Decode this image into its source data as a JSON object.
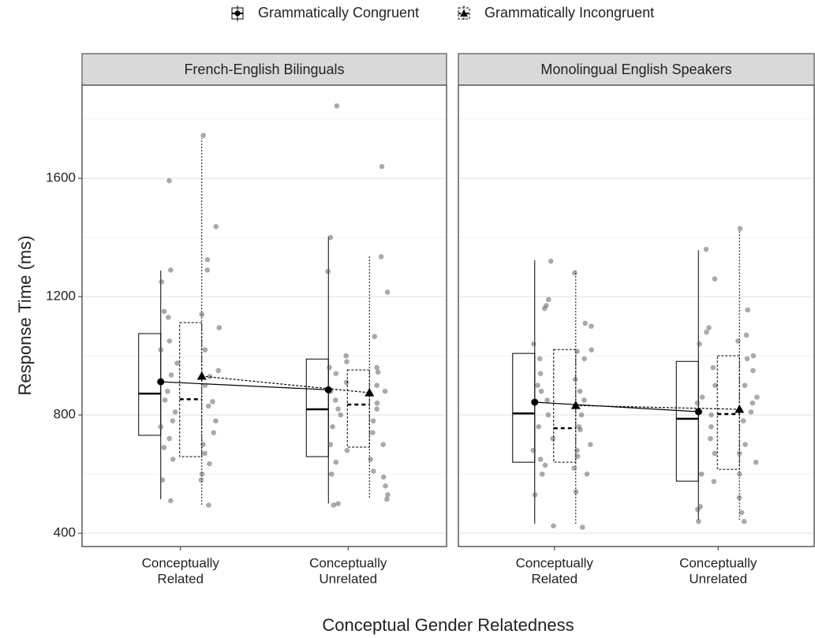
{
  "chart_data": {
    "type": "box",
    "x_label": "Conceptual Gender Relatedness",
    "y_label": "Response Time (ms)",
    "ylim": [
      355,
      1915
    ],
    "yticks": [
      400,
      800,
      1200,
      1600
    ],
    "grid": true,
    "legend": "top",
    "categories": [
      [
        "Conceptually",
        "Related"
      ],
      [
        "Conceptually",
        "Unrelated"
      ]
    ],
    "series": [
      {
        "name": "Grammatically Congruent",
        "color": "#000000",
        "dashed": false,
        "marker": "circle"
      },
      {
        "name": "Grammatically Incongruent",
        "color": "#000000",
        "dashed": true,
        "marker": "triangle"
      }
    ],
    "facets": [
      {
        "title": "French-English Bilinguals",
        "series": [
          {
            "boxes": [
              {
                "whisker_low": 515,
                "q1": 731,
                "median": 872,
                "q3": 1075,
                "whisker_high": 1288,
                "mean": 912,
                "points": [
                  1592,
                  1290,
                  1250,
                  1150,
                  1130,
                  1050,
                  1020,
                  975,
                  935,
                  880,
                  850,
                  810,
                  780,
                  760,
                  720,
                  690,
                  650,
                  580,
                  510
                ]
              },
              {
                "whisker_low": 501,
                "q1": 659,
                "median": 819,
                "q3": 989,
                "whisker_high": 1403,
                "mean": 885,
                "points": [
                  1845,
                  1400,
                  1285,
                  1000,
                  980,
                  960,
                  940,
                  910,
                  880,
                  850,
                  820,
                  800,
                  760,
                  700,
                  680,
                  640,
                  600,
                  500,
                  495
                ]
              }
            ]
          },
          {
            "boxes": [
              {
                "whisker_low": 496,
                "q1": 659,
                "median": 853,
                "q3": 1112,
                "whisker_high": 1736,
                "mean": 931,
                "points": [
                  1745,
                  1437,
                  1325,
                  1290,
                  1140,
                  1095,
                  1020,
                  950,
                  930,
                  900,
                  845,
                  830,
                  780,
                  740,
                  700,
                  670,
                  635,
                  600,
                  580,
                  495
                ]
              },
              {
                "whisker_low": 520,
                "q1": 691,
                "median": 835,
                "q3": 952,
                "whisker_high": 1336,
                "mean": 875,
                "points": [
                  1640,
                  1335,
                  1215,
                  1065,
                  960,
                  945,
                  900,
                  880,
                  840,
                  820,
                  780,
                  740,
                  700,
                  650,
                  610,
                  590,
                  560,
                  530,
                  515
                ]
              }
            ]
          }
        ]
      },
      {
        "title": "Monolingual English Speakers",
        "series": [
          {
            "boxes": [
              {
                "whisker_low": 432,
                "q1": 640,
                "median": 805,
                "q3": 1008,
                "whisker_high": 1323,
                "mean": 843,
                "points": [
                  1320,
                  1190,
                  1170,
                  1160,
                  1040,
                  990,
                  940,
                  900,
                  880,
                  850,
                  800,
                  760,
                  720,
                  680,
                  650,
                  630,
                  600,
                  530,
                  425
                ]
              },
              {
                "whisker_low": 445,
                "q1": 576,
                "median": 787,
                "q3": 981,
                "whisker_high": 1357,
                "mean": 811,
                "points": [
                  1360,
                  1260,
                  1095,
                  1080,
                  1040,
                  960,
                  900,
                  860,
                  840,
                  810,
                  800,
                  760,
                  720,
                  670,
                  600,
                  575,
                  490,
                  480,
                  440
                ]
              }
            ]
          },
          {
            "boxes": [
              {
                "whisker_low": 432,
                "q1": 640,
                "median": 755,
                "q3": 1021,
                "whisker_high": 1288,
                "mean": 832,
                "points": [
                  1280,
                  1110,
                  1100,
                  1020,
                  1015,
                  990,
                  920,
                  880,
                  850,
                  830,
                  800,
                  760,
                  750,
                  700,
                  680,
                  660,
                  620,
                  600,
                  540,
                  420
                ]
              },
              {
                "whisker_low": 445,
                "q1": 616,
                "median": 803,
                "q3": 1000,
                "whisker_high": 1424,
                "mean": 819,
                "points": [
                  1430,
                  1155,
                  1070,
                  1050,
                  1000,
                  990,
                  950,
                  900,
                  860,
                  840,
                  810,
                  780,
                  700,
                  670,
                  640,
                  600,
                  520,
                  470,
                  440
                ]
              }
            ]
          }
        ]
      }
    ]
  }
}
